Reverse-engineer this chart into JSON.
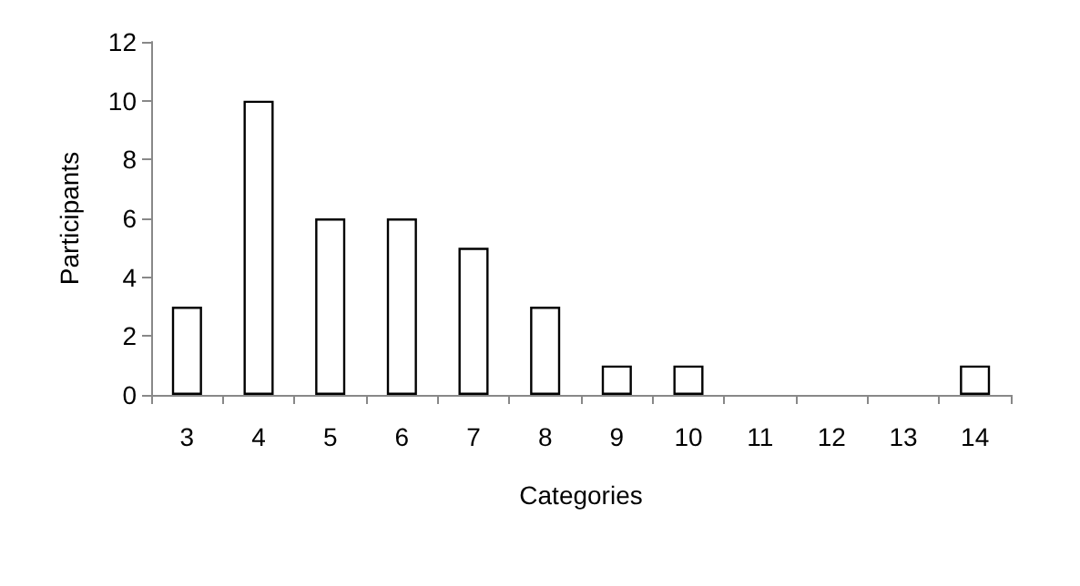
{
  "chart_data": {
    "type": "bar",
    "xlabel": "Categories",
    "ylabel": "Participants",
    "categories": [
      "3",
      "4",
      "5",
      "6",
      "7",
      "8",
      "9",
      "10",
      "11",
      "12",
      "13",
      "14"
    ],
    "values": [
      3,
      10,
      6,
      6,
      5,
      3,
      1,
      1,
      0,
      0,
      0,
      1
    ],
    "color": "#ffffff",
    "ylim": [
      0,
      12
    ],
    "yticks": [
      0,
      2,
      4,
      6,
      8,
      10,
      12
    ],
    "grid": false
  }
}
